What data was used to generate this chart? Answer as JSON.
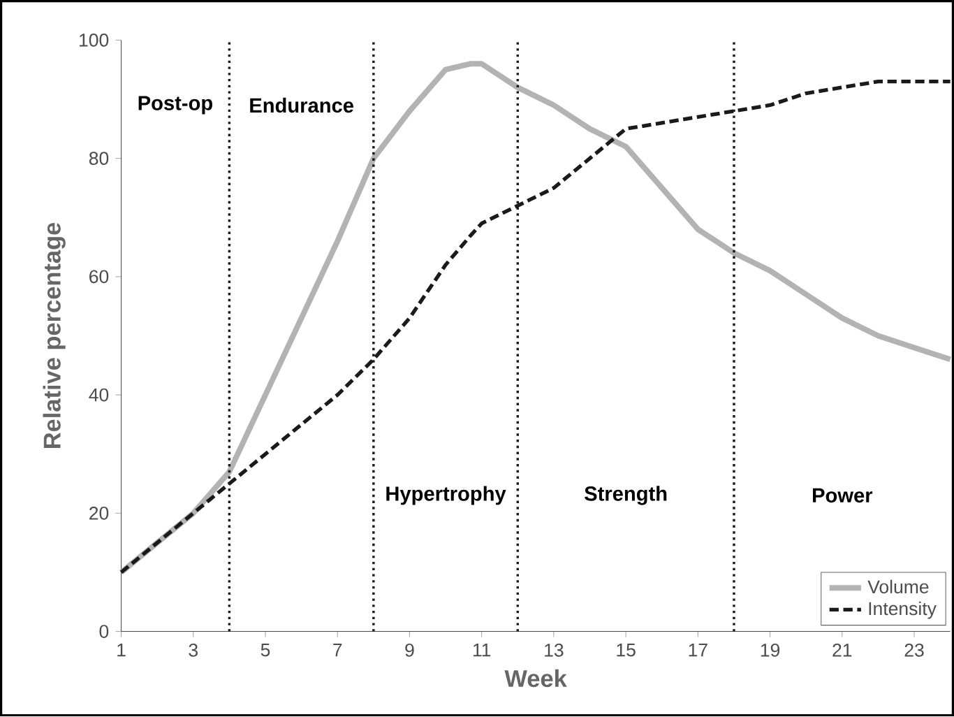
{
  "chart_data": {
    "type": "line",
    "xlabel": "Week",
    "ylabel": "Relative percentage",
    "x": [
      1,
      2,
      3,
      4,
      5,
      6,
      7,
      8,
      9,
      10,
      10.7,
      11,
      12,
      13,
      14,
      15,
      16,
      17,
      18,
      19,
      20,
      21,
      22,
      23,
      24
    ],
    "series": [
      {
        "name": "Volume",
        "color": "#b3b3b3",
        "line_style": "solid",
        "values": [
          10,
          15,
          20,
          27,
          40,
          53,
          66,
          80,
          88,
          95,
          96,
          96,
          92,
          89,
          85,
          82,
          75,
          68,
          64,
          61,
          57,
          53,
          50,
          48,
          46
        ]
      },
      {
        "name": "Intensity",
        "color": "#1a1a1a",
        "line_style": "dashed",
        "values": [
          10,
          15,
          20,
          25,
          30,
          35,
          40,
          46,
          53,
          62,
          67,
          69,
          72,
          75,
          80,
          85,
          86,
          87,
          88,
          89,
          91,
          92,
          93,
          93,
          93
        ]
      }
    ],
    "xlim": [
      1,
      24
    ],
    "ylim": [
      0,
      100
    ],
    "xticks": [
      1,
      3,
      5,
      7,
      9,
      11,
      13,
      15,
      17,
      19,
      21,
      23
    ],
    "yticks": [
      0,
      20,
      40,
      60,
      80,
      100
    ],
    "ref_lines": [
      {
        "axis": "x",
        "value": 4,
        "color": "#1a1a1a",
        "line_style": "dotted"
      },
      {
        "axis": "x",
        "value": 8,
        "color": "#1a1a1a",
        "line_style": "dotted"
      },
      {
        "axis": "x",
        "value": 12,
        "color": "#1a1a1a",
        "line_style": "dotted"
      },
      {
        "axis": "x",
        "value": 18,
        "color": "#1a1a1a",
        "line_style": "dotted"
      }
    ],
    "annotations": [
      "Post-op",
      "Endurance",
      "Hypertrophy",
      "Strength",
      "Power"
    ],
    "legend": "bottom right",
    "grid": false,
    "marker": "none"
  }
}
